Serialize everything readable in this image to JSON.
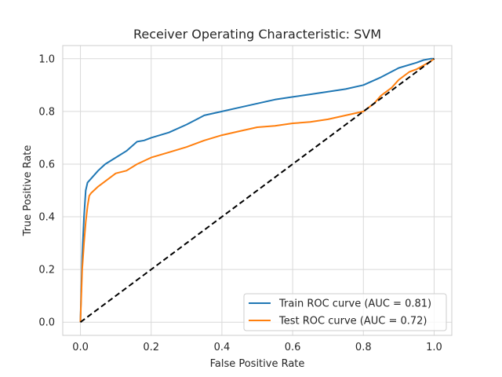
{
  "chart_data": {
    "type": "line",
    "title": "Receiver Operating Characteristic: SVM",
    "xlabel": "False Positive Rate",
    "ylabel": "True Positive Rate",
    "xlim": [
      -0.05,
      1.05
    ],
    "ylim": [
      -0.05,
      1.05
    ],
    "xticks": [
      0.0,
      0.2,
      0.4,
      0.6,
      0.8,
      1.0
    ],
    "yticks": [
      0.0,
      0.2,
      0.4,
      0.6,
      0.8,
      1.0
    ],
    "xtick_labels": [
      "0.0",
      "0.2",
      "0.4",
      "0.6",
      "0.8",
      "1.0"
    ],
    "ytick_labels": [
      "0.0",
      "0.2",
      "0.4",
      "0.6",
      "0.8",
      "1.0"
    ],
    "grid": true,
    "legend_position": "lower-right",
    "series": [
      {
        "name": "Train ROC curve (AUC = 0.81)",
        "color": "#1f77b4",
        "x": [
          0.0,
          0.005,
          0.01,
          0.015,
          0.02,
          0.03,
          0.05,
          0.07,
          0.1,
          0.13,
          0.16,
          0.18,
          0.2,
          0.25,
          0.3,
          0.35,
          0.4,
          0.45,
          0.5,
          0.55,
          0.6,
          0.65,
          0.7,
          0.75,
          0.8,
          0.85,
          0.9,
          0.95,
          0.97,
          0.99,
          1.0
        ],
        "y": [
          0.0,
          0.25,
          0.4,
          0.5,
          0.53,
          0.545,
          0.575,
          0.6,
          0.625,
          0.65,
          0.685,
          0.69,
          0.7,
          0.72,
          0.75,
          0.785,
          0.8,
          0.815,
          0.83,
          0.845,
          0.855,
          0.865,
          0.875,
          0.885,
          0.9,
          0.93,
          0.965,
          0.985,
          0.995,
          1.0,
          1.0
        ]
      },
      {
        "name": "Test ROC curve (AUC = 0.72)",
        "color": "#ff7f0e",
        "x": [
          0.0,
          0.005,
          0.01,
          0.015,
          0.02,
          0.025,
          0.03,
          0.05,
          0.07,
          0.1,
          0.13,
          0.16,
          0.2,
          0.25,
          0.3,
          0.35,
          0.4,
          0.45,
          0.5,
          0.55,
          0.6,
          0.65,
          0.7,
          0.75,
          0.8,
          0.83,
          0.85,
          0.88,
          0.9,
          0.93,
          0.95,
          0.97,
          0.99,
          1.0
        ],
        "y": [
          0.0,
          0.2,
          0.3,
          0.38,
          0.44,
          0.48,
          0.49,
          0.515,
          0.535,
          0.565,
          0.575,
          0.6,
          0.625,
          0.645,
          0.665,
          0.69,
          0.71,
          0.725,
          0.74,
          0.745,
          0.755,
          0.76,
          0.77,
          0.785,
          0.8,
          0.83,
          0.86,
          0.89,
          0.92,
          0.95,
          0.96,
          0.975,
          0.99,
          1.0
        ]
      },
      {
        "name": "",
        "color": "#000000",
        "style": "dashed",
        "x": [
          0.0,
          1.0
        ],
        "y": [
          0.0,
          1.0
        ]
      }
    ]
  }
}
